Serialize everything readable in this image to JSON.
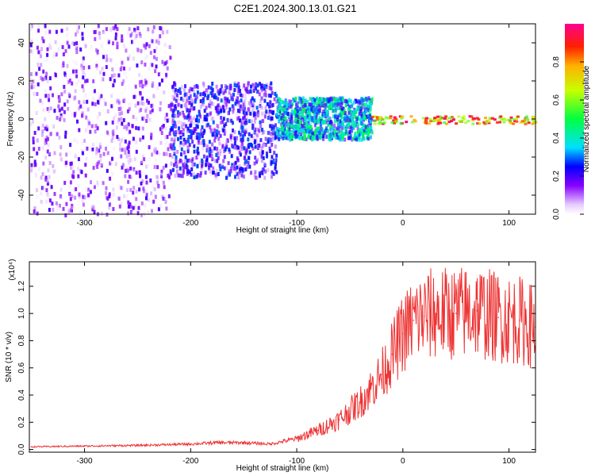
{
  "title": "C2E1.2024.300.13.01.G21",
  "chart_data": [
    {
      "type": "heatmap",
      "xlabel": "Height of straight line (km)",
      "ylabel": "Frequency (Hz)",
      "xlim": [
        -352,
        125
      ],
      "ylim": [
        -50,
        50
      ],
      "xticks": [
        -300,
        -200,
        -100,
        0,
        100
      ],
      "yticks": [
        -40,
        -20,
        0,
        20,
        40
      ],
      "colorbar": {
        "label": "Normalized spectral amplitude",
        "range": [
          0.0,
          1.0
        ],
        "ticks": [
          0.0,
          0.2,
          0.4,
          0.6,
          0.8
        ]
      },
      "regions": [
        {
          "x_range": [
            -352,
            -220
          ],
          "freq_spread": [
            -50,
            50
          ],
          "amplitude": [
            0.0,
            0.2
          ]
        },
        {
          "x_range": [
            -220,
            -120
          ],
          "freq_spread": [
            -30,
            20
          ],
          "amplitude": [
            0.05,
            0.3
          ]
        },
        {
          "x_range": [
            -120,
            -30
          ],
          "freq_spread": [
            -10,
            12
          ],
          "amplitude": [
            0.15,
            0.5
          ]
        },
        {
          "x_range": [
            -30,
            125
          ],
          "freq_spread": [
            -2,
            2
          ],
          "amplitude": [
            0.5,
            1.0
          ]
        }
      ]
    },
    {
      "type": "line",
      "xlabel": "Height of straight line (km)",
      "ylabel": "SNR (10 * v/v)",
      "yscale_label": "(x10⁴)",
      "xlim": [
        -352,
        125
      ],
      "ylim": [
        -0.02,
        1.38
      ],
      "xticks": [
        -300,
        -200,
        -100,
        0,
        100
      ],
      "yticks": [
        0.0,
        0.2,
        0.4,
        0.6,
        0.8,
        1.0,
        1.2
      ],
      "color": "#ee3333",
      "x": [
        -350,
        -300,
        -250,
        -200,
        -175,
        -150,
        -125,
        -100,
        -80,
        -60,
        -40,
        -20,
        -10,
        0,
        10,
        20,
        30,
        50,
        70,
        90,
        110,
        125
      ],
      "y": [
        0.02,
        0.025,
        0.03,
        0.04,
        0.05,
        0.05,
        0.04,
        0.08,
        0.14,
        0.22,
        0.35,
        0.55,
        0.7,
        0.85,
        0.95,
        0.98,
        1.0,
        1.0,
        1.02,
        0.97,
        0.95,
        0.9
      ]
    }
  ]
}
